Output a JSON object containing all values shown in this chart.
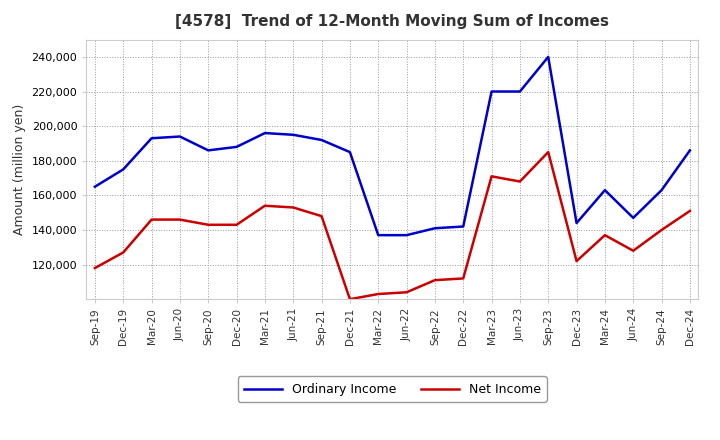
{
  "title": "[4578]  Trend of 12-Month Moving Sum of Incomes",
  "ylabel": "Amount (million yen)",
  "labels": [
    "Sep-19",
    "Dec-19",
    "Mar-20",
    "Jun-20",
    "Sep-20",
    "Dec-20",
    "Mar-21",
    "Jun-21",
    "Sep-21",
    "Dec-21",
    "Mar-22",
    "Jun-22",
    "Sep-22",
    "Dec-22",
    "Mar-23",
    "Jun-23",
    "Sep-23",
    "Dec-23",
    "Mar-24",
    "Jun-24",
    "Sep-24",
    "Dec-24"
  ],
  "ordinary_income": [
    165000,
    175000,
    193000,
    194000,
    186000,
    188000,
    196000,
    195000,
    192000,
    185000,
    137000,
    137000,
    141000,
    142000,
    220000,
    220000,
    240000,
    144000,
    163000,
    147000,
    163000,
    186000
  ],
  "net_income": [
    118000,
    127000,
    146000,
    146000,
    143000,
    143000,
    154000,
    153000,
    148000,
    100000,
    103000,
    104000,
    111000,
    112000,
    171000,
    168000,
    185000,
    122000,
    137000,
    128000,
    140000,
    151000
  ],
  "ordinary_color": "#0000cc",
  "net_color": "#cc0000",
  "ylim_min": 100000,
  "ylim_max": 250000,
  "yticks": [
    120000,
    140000,
    160000,
    180000,
    200000,
    220000,
    240000
  ],
  "bg_color": "#ffffff",
  "plot_bg_color": "#ffffff",
  "grid_color": "#999999",
  "legend_ordinary": "Ordinary Income",
  "legend_net": "Net Income",
  "line_width": 1.8
}
